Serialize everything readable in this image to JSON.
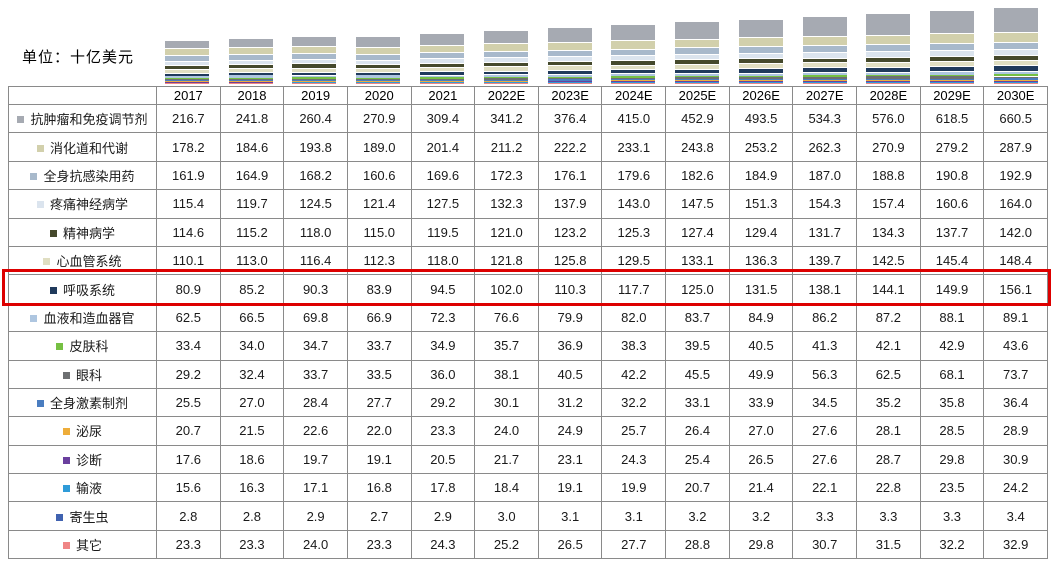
{
  "unit_label": "单位：十亿美元",
  "highlight": {
    "row": "呼吸系统",
    "color": "#dd0000"
  },
  "chart_data": {
    "type": "bar",
    "stacked": true,
    "stack_order": "first-series-on-top",
    "title": "",
    "unit_label": "单位：十亿美元",
    "legend_position": "table-row-labels",
    "categories": [
      "2017",
      "2018",
      "2019",
      "2020",
      "2021",
      "2022E",
      "2023E",
      "2024E",
      "2025E",
      "2026E",
      "2027E",
      "2028E",
      "2029E",
      "2030E"
    ],
    "series": [
      {
        "name": "抗肿瘤和免疫调节剂",
        "color": "#a6aab2",
        "values": [
          "216.7",
          "241.8",
          "260.4",
          "270.9",
          "309.4",
          "341.2",
          "376.4",
          "415.0",
          "452.9",
          "493.5",
          "534.3",
          "576.0",
          "618.5",
          "660.5"
        ]
      },
      {
        "name": "消化道和代谢",
        "color": "#d2d0ac",
        "values": [
          "178.2",
          "184.6",
          "193.8",
          "189.0",
          "201.4",
          "211.2",
          "222.2",
          "233.1",
          "243.8",
          "253.2",
          "262.3",
          "270.9",
          "279.2",
          "287.9"
        ]
      },
      {
        "name": "全身抗感染用药",
        "color": "#a8b9cb",
        "values": [
          "161.9",
          "164.9",
          "168.2",
          "160.6",
          "169.6",
          "172.3",
          "176.1",
          "179.6",
          "182.6",
          "184.9",
          "187.0",
          "188.8",
          "190.8",
          "192.9"
        ]
      },
      {
        "name": "疼痛神经病学",
        "color": "#dbe4ee",
        "values": [
          "115.4",
          "119.7",
          "124.5",
          "121.4",
          "127.5",
          "132.3",
          "137.9",
          "143.0",
          "147.5",
          "151.3",
          "154.3",
          "157.4",
          "160.6",
          "164.0"
        ]
      },
      {
        "name": "精神病学",
        "color": "#45492c",
        "values": [
          "114.6",
          "115.2",
          "118.0",
          "115.0",
          "119.5",
          "121.0",
          "123.2",
          "125.3",
          "127.4",
          "129.4",
          "131.7",
          "134.3",
          "137.7",
          "142.0"
        ]
      },
      {
        "name": "心血管系统",
        "color": "#e0dec2",
        "values": [
          "110.1",
          "113.0",
          "116.4",
          "112.3",
          "118.0",
          "121.8",
          "125.8",
          "129.5",
          "133.1",
          "136.3",
          "139.7",
          "142.5",
          "145.4",
          "148.4"
        ]
      },
      {
        "name": "呼吸系统",
        "color": "#203a5c",
        "values": [
          "80.9",
          "85.2",
          "90.3",
          "83.9",
          "94.5",
          "102.0",
          "110.3",
          "117.7",
          "125.0",
          "131.5",
          "138.1",
          "144.1",
          "149.9",
          "156.1"
        ]
      },
      {
        "name": "血液和造血器官",
        "color": "#aec6e0",
        "values": [
          "62.5",
          "66.5",
          "69.8",
          "66.9",
          "72.3",
          "76.6",
          "79.9",
          "82.0",
          "83.7",
          "84.9",
          "86.2",
          "87.2",
          "88.1",
          "89.1"
        ]
      },
      {
        "name": "皮肤科",
        "color": "#76c043",
        "values": [
          "33.4",
          "34.0",
          "34.7",
          "33.7",
          "34.9",
          "35.7",
          "36.9",
          "38.3",
          "39.5",
          "40.5",
          "41.3",
          "42.1",
          "42.9",
          "43.6"
        ]
      },
      {
        "name": "眼科",
        "color": "#6d6f71",
        "values": [
          "29.2",
          "32.4",
          "33.7",
          "33.5",
          "36.0",
          "38.1",
          "40.5",
          "42.2",
          "45.5",
          "49.9",
          "56.3",
          "62.5",
          "68.1",
          "73.7"
        ]
      },
      {
        "name": "全身激素制剂",
        "color": "#4a7dc0",
        "values": [
          "25.5",
          "27.0",
          "28.4",
          "27.7",
          "29.2",
          "30.1",
          "31.2",
          "32.2",
          "33.1",
          "33.9",
          "34.5",
          "35.2",
          "35.8",
          "36.4"
        ]
      },
      {
        "name": "泌尿",
        "color": "#eead3a",
        "values": [
          "20.7",
          "21.5",
          "22.6",
          "22.0",
          "23.3",
          "24.0",
          "24.9",
          "25.7",
          "26.4",
          "27.0",
          "27.6",
          "28.1",
          "28.5",
          "28.9"
        ]
      },
      {
        "name": "诊断",
        "color": "#6a3f9e",
        "values": [
          "17.6",
          "18.6",
          "19.7",
          "19.1",
          "20.5",
          "21.7",
          "23.1",
          "24.3",
          "25.4",
          "26.5",
          "27.6",
          "28.7",
          "29.8",
          "30.9"
        ]
      },
      {
        "name": "输液",
        "color": "#2f9bd8",
        "values": [
          "15.6",
          "16.3",
          "17.1",
          "16.8",
          "17.8",
          "18.4",
          "19.1",
          "19.9",
          "20.7",
          "21.4",
          "22.1",
          "22.8",
          "23.5",
          "24.2"
        ]
      },
      {
        "name": "寄生虫",
        "color": "#4062b0",
        "values": [
          "2.8",
          "2.8",
          "2.9",
          "2.7",
          "2.9",
          "3.0",
          "3.1",
          "3.1",
          "3.2",
          "3.2",
          "3.3",
          "3.3",
          "3.3",
          "3.4"
        ]
      },
      {
        "name": "其它",
        "color": "#ef8585",
        "values": [
          "23.3",
          "23.3",
          "24.0",
          "23.3",
          "24.3",
          "25.2",
          "26.5",
          "27.7",
          "28.8",
          "29.8",
          "30.7",
          "31.5",
          "32.2",
          "32.9"
        ]
      }
    ]
  }
}
